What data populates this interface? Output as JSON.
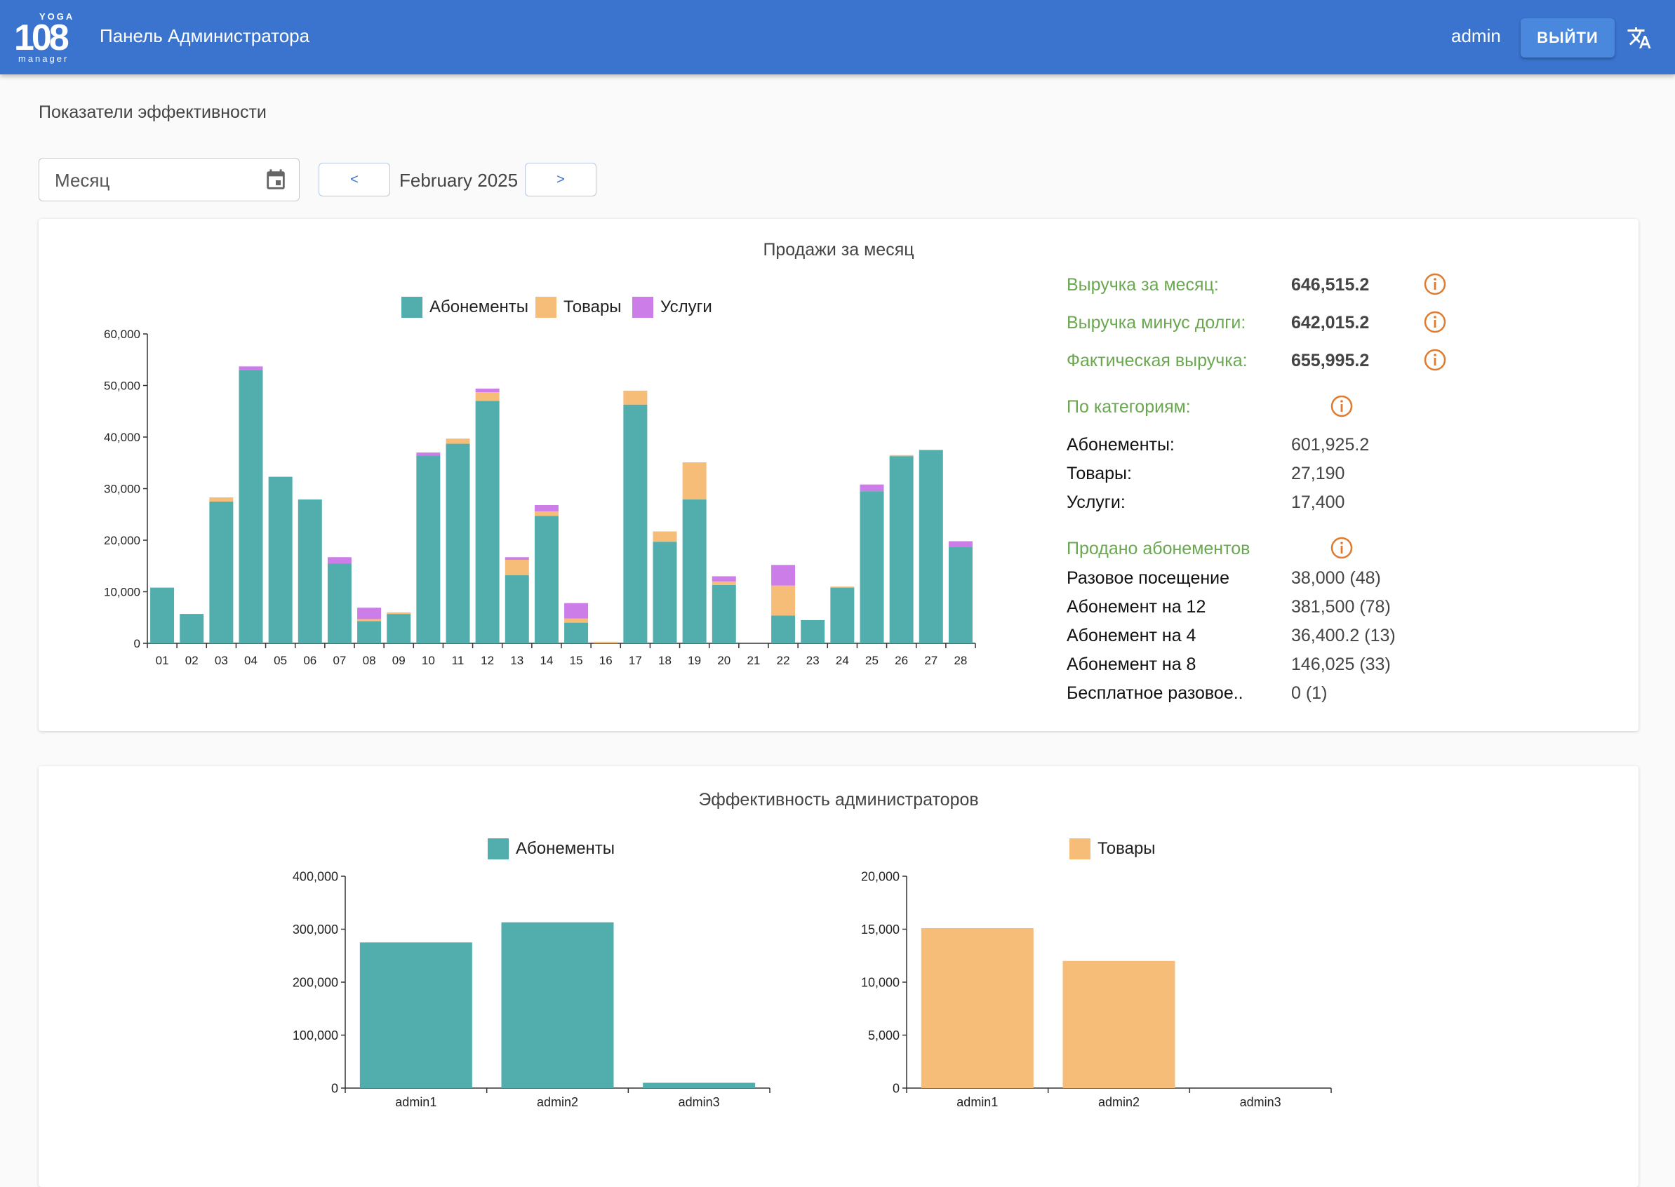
{
  "app": {
    "logo_top": "YOGA",
    "logo_num": "108",
    "logo_bottom": "manager",
    "title": "Панель Администратора",
    "user": "admin",
    "logout_label": "ВЫЙТИ"
  },
  "page": {
    "heading": "Показатели эффективности",
    "month_placeholder": "Месяц",
    "prev_label": "<",
    "next_label": ">",
    "period": "February 2025"
  },
  "colors": {
    "abon": "#52aead",
    "goods": "#f5bd78",
    "services": "#cc7de8",
    "accent": "#3a74cf",
    "green": "#6aa84f",
    "info": "#e07a2e"
  },
  "sales_card": {
    "title": "Продажи за месяц",
    "stats": {
      "revenue_label": "Выручка за месяц:",
      "revenue_value": "646,515.2",
      "minus_debt_label": "Выручка минус долги:",
      "minus_debt_value": "642,015.2",
      "actual_label": "Фактическая выручка:",
      "actual_value": "655,995.2",
      "by_category_label": "По категориям:",
      "categories": [
        {
          "label": "Абонементы:",
          "value": "601,925.2"
        },
        {
          "label": "Товары:",
          "value": "27,190"
        },
        {
          "label": "Услуги:",
          "value": "17,400"
        }
      ],
      "sold_label": "Продано абонементов",
      "sold": [
        {
          "label": "Разовое посещение",
          "value": "38,000 (48)"
        },
        {
          "label": "Абонемент на 12",
          "value": "381,500 (78)"
        },
        {
          "label": "Абонемент на 4",
          "value": "36,400.2 (13)"
        },
        {
          "label": "Абонемент на 8",
          "value": "146,025 (33)"
        },
        {
          "label": "Бесплатное разовое..",
          "value": "0 (1)"
        }
      ]
    }
  },
  "admins_card": {
    "title": "Эффективность администраторов"
  },
  "chart_data": [
    {
      "type": "bar",
      "stacked": true,
      "title": "Продажи за месяц",
      "categories": [
        "01",
        "02",
        "03",
        "04",
        "05",
        "06",
        "07",
        "08",
        "09",
        "10",
        "11",
        "12",
        "13",
        "14",
        "15",
        "16",
        "17",
        "18",
        "19",
        "20",
        "21",
        "22",
        "23",
        "24",
        "25",
        "26",
        "27",
        "28"
      ],
      "series": [
        {
          "name": "Абонементы",
          "values": [
            10800,
            5700,
            27500,
            53000,
            32300,
            27900,
            15500,
            4300,
            5700,
            36400,
            38700,
            47000,
            13200,
            24700,
            4000,
            0,
            46300,
            19700,
            27900,
            11300,
            0,
            5400,
            4500,
            10800,
            29500,
            36300,
            37500,
            18700
          ]
        },
        {
          "name": "Товары",
          "values": [
            0,
            0,
            800,
            0,
            0,
            0,
            0,
            400,
            300,
            0,
            1000,
            1700,
            3000,
            900,
            800,
            300,
            2700,
            2000,
            7200,
            700,
            0,
            5800,
            0,
            200,
            0,
            200,
            0,
            0
          ]
        },
        {
          "name": "Услуги",
          "values": [
            0,
            0,
            0,
            700,
            0,
            0,
            1200,
            2200,
            0,
            600,
            0,
            700,
            500,
            1200,
            3000,
            0,
            0,
            0,
            0,
            1000,
            0,
            4000,
            0,
            0,
            1300,
            0,
            0,
            1100
          ]
        }
      ],
      "ylim": [
        0,
        60000
      ],
      "yticks": [
        "0",
        "10,000",
        "20,000",
        "30,000",
        "40,000",
        "50,000",
        "60,000"
      ],
      "legend": "top"
    },
    {
      "type": "bar",
      "title": "Абонементы",
      "categories": [
        "admin1",
        "admin2",
        "admin3"
      ],
      "series": [
        {
          "name": "Абонементы",
          "values": [
            275000,
            313000,
            10000
          ]
        }
      ],
      "ylim": [
        0,
        400000
      ],
      "yticks": [
        "0",
        "100,000",
        "200,000",
        "300,000",
        "400,000"
      ],
      "legend": "top"
    },
    {
      "type": "bar",
      "title": "Товары",
      "categories": [
        "admin1",
        "admin2",
        "admin3"
      ],
      "series": [
        {
          "name": "Товары",
          "values": [
            15100,
            12000,
            0
          ]
        }
      ],
      "ylim": [
        0,
        20000
      ],
      "yticks": [
        "0",
        "5,000",
        "10,000",
        "15,000",
        "20,000"
      ],
      "legend": "top"
    }
  ]
}
